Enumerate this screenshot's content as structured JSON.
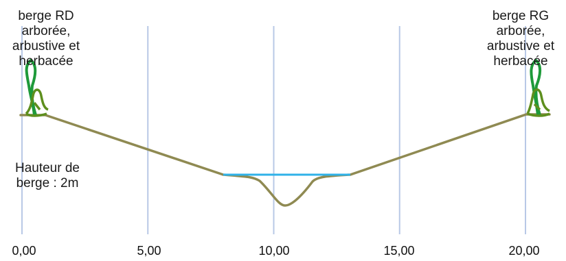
{
  "labels": {
    "bank_right": [
      "berge RD",
      "arborée,",
      "arbustive et",
      "herbacée"
    ],
    "bank_left": [
      "berge RG",
      "arborée,",
      "arbustive et",
      "herbacée"
    ],
    "bank_height": [
      "Hauteur de",
      "berge : 2m"
    ]
  },
  "x_axis": {
    "ticks": [
      "0,00",
      "5,00",
      "10,00",
      "15,00",
      "20,00"
    ],
    "tick_values": [
      0,
      5,
      10,
      15,
      20
    ],
    "range": [
      0,
      20
    ]
  },
  "colors": {
    "ground": "#8f8a52",
    "water": "#2fb2e8",
    "tree": "#1e9a3a",
    "shrub": "#5e8f1e",
    "gridline": "#b8c8e6",
    "title": "#e07a1f"
  },
  "profile": {
    "ground_points": [
      [
        0,
        0
      ],
      [
        1,
        0
      ],
      [
        8,
        -2.3
      ],
      [
        9,
        -2.4
      ],
      [
        10.5,
        -3.5
      ],
      [
        12,
        -2.4
      ],
      [
        13,
        -2.3
      ],
      [
        20,
        0
      ],
      [
        21,
        0
      ]
    ],
    "water_level": [
      [
        8,
        -2.3
      ],
      [
        13,
        -2.3
      ]
    ]
  }
}
